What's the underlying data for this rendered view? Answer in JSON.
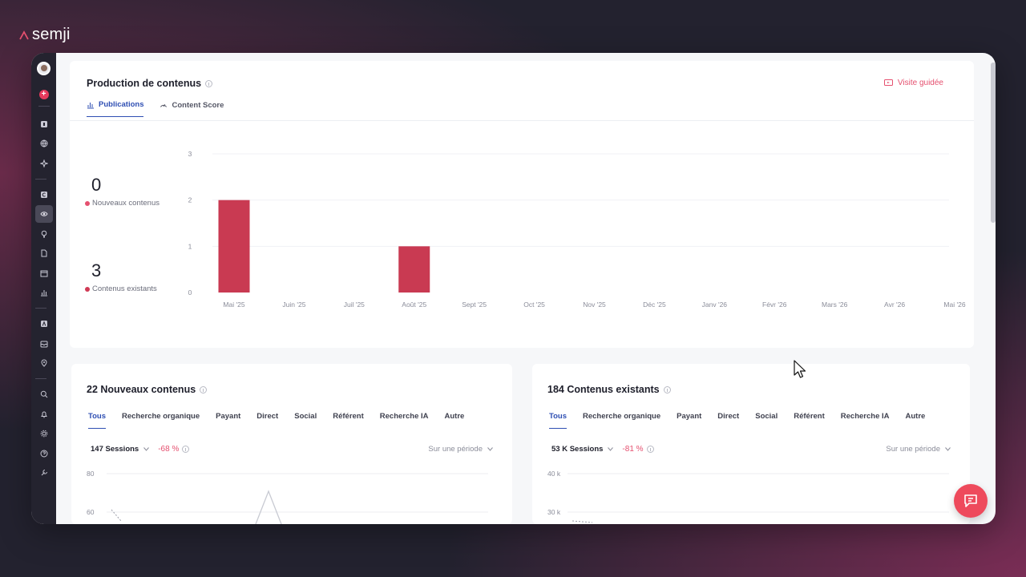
{
  "brand": {
    "name": "semji",
    "accent": "#e5506f"
  },
  "rail": {
    "items": [
      {
        "icon": "bold-square-icon"
      },
      {
        "icon": "globe-icon"
      },
      {
        "icon": "sparkle-icon"
      },
      {
        "icon": "c-square-icon"
      },
      {
        "icon": "eye-icon"
      },
      {
        "icon": "lightbulb-icon"
      },
      {
        "icon": "document-icon"
      },
      {
        "icon": "calendar-icon"
      },
      {
        "icon": "bar-chart-icon"
      },
      {
        "icon": "a-square-icon"
      },
      {
        "icon": "inbox-icon"
      },
      {
        "icon": "location-icon"
      },
      {
        "icon": "search-icon"
      },
      {
        "icon": "bell-icon"
      },
      {
        "icon": "gear-icon"
      },
      {
        "icon": "help-icon"
      },
      {
        "icon": "wrench-icon"
      }
    ],
    "active_icon": "eye-icon"
  },
  "production": {
    "title": "Production de contenus",
    "guided_label": "Visite guidée",
    "tabs": [
      {
        "label": "Publications",
        "icon": "bar-chart-icon",
        "active": true
      },
      {
        "label": "Content Score",
        "icon": "gauge-icon",
        "active": false
      }
    ],
    "kpis": [
      {
        "value": "0",
        "label": "Nouveaux contenus",
        "color": "#e5506f"
      },
      {
        "value": "3",
        "label": "Contenus existants",
        "color": "#c93a52"
      }
    ]
  },
  "chart_data": {
    "type": "bar",
    "categories": [
      "Mai '25",
      "Juin '25",
      "Juil '25",
      "Août '25",
      "Sept '25",
      "Oct '25",
      "Nov '25",
      "Déc '25",
      "Janv '26",
      "Févr '26",
      "Mars '26",
      "Avr '26",
      "Mai '26"
    ],
    "values": [
      2,
      0,
      0,
      1,
      0,
      0,
      0,
      0,
      0,
      0,
      0,
      0,
      0
    ],
    "ylim": [
      0,
      3
    ],
    "yticks": [
      "0",
      "1",
      "2",
      "3"
    ],
    "grid": true,
    "bar_color": "#c93a52",
    "title": "",
    "xlabel": "",
    "ylabel": ""
  },
  "new_contents": {
    "title": "22 Nouveaux contenus",
    "tabs": [
      "Tous",
      "Recherche organique",
      "Payant",
      "Direct",
      "Social",
      "Référent",
      "Recherche IA",
      "Autre"
    ],
    "sessions": "147 Sessions",
    "delta": "-68 %",
    "period": "Sur une période",
    "yticks": [
      "80",
      "60"
    ]
  },
  "existing_contents": {
    "title": "184 Contenus existants",
    "tabs": [
      "Tous",
      "Recherche organique",
      "Payant",
      "Direct",
      "Social",
      "Référent",
      "Recherche IA",
      "Autre"
    ],
    "sessions": "53 K Sessions",
    "delta": "-81 %",
    "period": "Sur une période",
    "yticks": [
      "40 k",
      "30 k"
    ]
  }
}
